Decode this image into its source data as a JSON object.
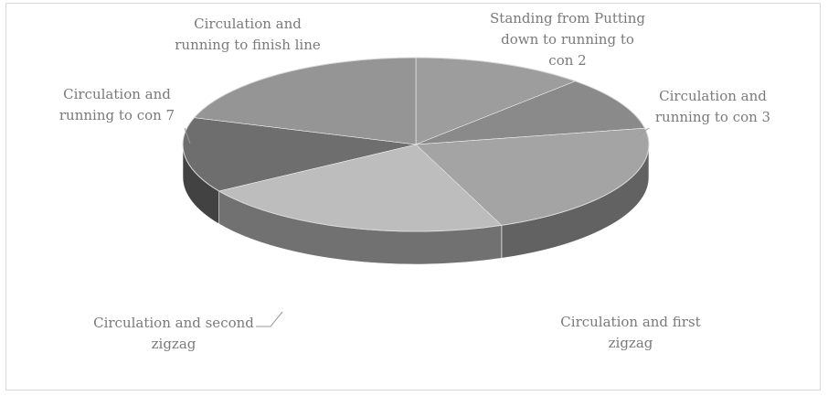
{
  "chart_data": {
    "type": "pie",
    "style": "3d",
    "categories": [
      "Standing from Putting down to running to con 2",
      "Circulation and running to con 3",
      "Circulation and first zigzag",
      "Circulation and second zigzag",
      "Circulation and running to con 7",
      "Circulation and running to finish line"
    ],
    "values": [
      12,
      10,
      22,
      22,
      14,
      20
    ],
    "colors": [
      "#9d9d9d",
      "#8a8a8a",
      "#a4a4a4",
      "#bdbdbd",
      "#6e6e6e",
      "#959595"
    ],
    "labels": [
      {
        "lines": [
          "Standing from Putting",
          "down to running to",
          "con 2"
        ]
      },
      {
        "lines": [
          "Circulation and",
          "running to con 3"
        ]
      },
      {
        "lines": [
          "Circulation and first",
          "zigzag"
        ]
      },
      {
        "lines": [
          "Circulation and second",
          "zigzag"
        ]
      },
      {
        "lines": [
          "Circulation and",
          "running to con 7"
        ]
      },
      {
        "lines": [
          "Circulation and",
          "running to finish line"
        ]
      }
    ],
    "legend": "none",
    "grid": false
  }
}
